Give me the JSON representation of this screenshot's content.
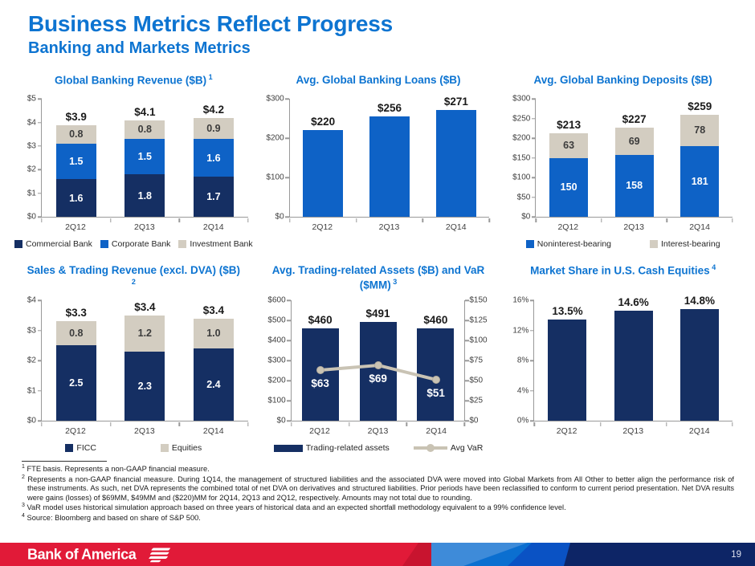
{
  "slide": {
    "title": "Business Metrics Reflect Progress",
    "subtitle": "Banking and Markets Metrics",
    "page_number": "19",
    "logo_text": "Bank of America"
  },
  "colors": {
    "navy": "#152F63",
    "blue": "#0E62C6",
    "tan": "#D3CDC1",
    "tanline": "#C9C3B4",
    "title_blue": "#0D74D1",
    "footer_red": "#E11A38",
    "footer_red_dark": "#C8142F",
    "footer_blue_light": "#3E8BD9",
    "footer_blue_mid": "#0B6FD0",
    "footer_blue_royal": "#0A52C4",
    "footer_navy": "#0D2566"
  },
  "chart_data": [
    {
      "type": "bar",
      "subtype": "stacked",
      "title": "Global Banking Revenue ($B)",
      "title_sup": "1",
      "categories": [
        "2Q12",
        "2Q13",
        "2Q14"
      ],
      "series": [
        {
          "name": "Commercial Bank",
          "color": "navy",
          "values": [
            1.6,
            1.8,
            1.7
          ],
          "labels": [
            "1.6",
            "1.8",
            "1.7"
          ],
          "label_style": "light"
        },
        {
          "name": "Corporate Bank",
          "color": "blue",
          "values": [
            1.5,
            1.5,
            1.6
          ],
          "labels": [
            "1.5",
            "1.5",
            "1.6"
          ],
          "label_style": "light"
        },
        {
          "name": "Investment Bank",
          "color": "tan",
          "values": [
            0.8,
            0.8,
            0.9
          ],
          "labels": [
            "0.8",
            "0.8",
            "0.9"
          ],
          "label_style": "dark"
        }
      ],
      "totals": [
        "$3.9",
        "$4.1",
        "$4.2"
      ],
      "ylim": [
        0,
        5
      ],
      "yticks": [
        "$0",
        "$1",
        "$2",
        "$3",
        "$4",
        "$5"
      ],
      "legend_position": "bottom"
    },
    {
      "type": "bar",
      "subtype": "simple",
      "title": "Avg. Global Banking Loans ($B)",
      "categories": [
        "2Q12",
        "2Q13",
        "2Q14"
      ],
      "series": [
        {
          "name": "Avg. loans",
          "color": "blue",
          "values": [
            220,
            256,
            271
          ]
        }
      ],
      "totals": [
        "$220",
        "$256",
        "$271"
      ],
      "ylim": [
        0,
        300
      ],
      "yticks": [
        "$0",
        "$100",
        "$200",
        "$300"
      ]
    },
    {
      "type": "bar",
      "subtype": "stacked",
      "title": "Avg. Global Banking Deposits ($B)",
      "categories": [
        "2Q12",
        "2Q13",
        "2Q14"
      ],
      "series": [
        {
          "name": "Noninterest-bearing",
          "color": "blue",
          "values": [
            150,
            158,
            181
          ],
          "labels": [
            "150",
            "158",
            "181"
          ],
          "label_style": "light"
        },
        {
          "name": "Interest-bearing",
          "color": "tan",
          "values": [
            63,
            69,
            78
          ],
          "labels": [
            "63",
            "69",
            "78"
          ],
          "label_style": "dark"
        }
      ],
      "totals": [
        "$213",
        "$227",
        "$259"
      ],
      "ylim": [
        0,
        300
      ],
      "yticks": [
        "$0",
        "$50",
        "$100",
        "$150",
        "$200",
        "$250",
        "$300"
      ],
      "legend_position": "bottom"
    },
    {
      "type": "bar",
      "subtype": "stacked",
      "title": "Sales & Trading Revenue (excl. DVA) ($B)",
      "title_sup": "2",
      "categories": [
        "2Q12",
        "2Q13",
        "2Q14"
      ],
      "series": [
        {
          "name": "FICC",
          "color": "navy",
          "values": [
            2.5,
            2.3,
            2.4
          ],
          "labels": [
            "2.5",
            "2.3",
            "2.4"
          ],
          "label_style": "light"
        },
        {
          "name": "Equities",
          "color": "tan",
          "values": [
            0.8,
            1.2,
            1.0
          ],
          "labels": [
            "0.8",
            "1.2",
            "1.0"
          ],
          "label_style": "dark"
        }
      ],
      "totals": [
        "$3.3",
        "$3.4",
        "$3.4"
      ],
      "ylim": [
        0,
        4
      ],
      "yticks": [
        "$0",
        "$1",
        "$2",
        "$3",
        "$4"
      ],
      "legend_position": "bottom"
    },
    {
      "type": "bar",
      "subtype": "bar-line",
      "title": "Avg. Trading-related Assets ($B) and VaR ($MM)",
      "title_sup": "3",
      "categories": [
        "2Q12",
        "2Q13",
        "2Q14"
      ],
      "series": [
        {
          "name": "Trading-related assets",
          "color": "navy",
          "values": [
            460,
            491,
            460
          ]
        }
      ],
      "totals": [
        "$460",
        "$491",
        "$460"
      ],
      "line": {
        "name": "Avg VaR",
        "color": "tanline",
        "values": [
          63,
          69,
          51
        ],
        "labels": [
          "$63",
          "$69",
          "$51"
        ],
        "ylim": [
          0,
          150
        ]
      },
      "ylim": [
        0,
        600
      ],
      "yticks": [
        "$0",
        "$100",
        "$200",
        "$300",
        "$400",
        "$500",
        "$600"
      ],
      "yticks_right": [
        "$0",
        "$25",
        "$50",
        "$75",
        "$100",
        "$125",
        "$150"
      ],
      "legend_position": "bottom"
    },
    {
      "type": "bar",
      "subtype": "simple",
      "title": "Market Share in U.S. Cash Equities",
      "title_sup": "4",
      "categories": [
        "2Q12",
        "2Q13",
        "2Q14"
      ],
      "series": [
        {
          "name": "Market share",
          "color": "navy",
          "values": [
            13.5,
            14.6,
            14.8
          ]
        }
      ],
      "totals": [
        "13.5%",
        "14.6%",
        "14.8%"
      ],
      "ylim": [
        0,
        16
      ],
      "yticks": [
        "0%",
        "4%",
        "8%",
        "12%",
        "16%"
      ]
    }
  ],
  "footnotes": [
    {
      "sup": "1",
      "text": "FTE basis. Represents a non-GAAP financial measure."
    },
    {
      "sup": "2",
      "text": "Represents a non-GAAP financial measure. During 1Q14, the management of structured liabilities and the associated DVA were moved into Global Markets from All Other to better align the performance risk of these instruments. As such, net DVA represents the combined total of net DVA on derivatives and structured liabilities. Prior periods have been reclassified to conform to current period presentation. Net DVA results were gains (losses) of $69MM, $49MM and ($220)MM for 2Q14, 2Q13 and 2Q12, respectively. Amounts may not total due to rounding."
    },
    {
      "sup": "3",
      "text": "VaR model uses historical simulation approach based on three years of historical data and an expected shortfall methodology equivalent to a 99% confidence level."
    },
    {
      "sup": "4",
      "text": "Source: Bloomberg and based on share of S&P 500."
    }
  ]
}
